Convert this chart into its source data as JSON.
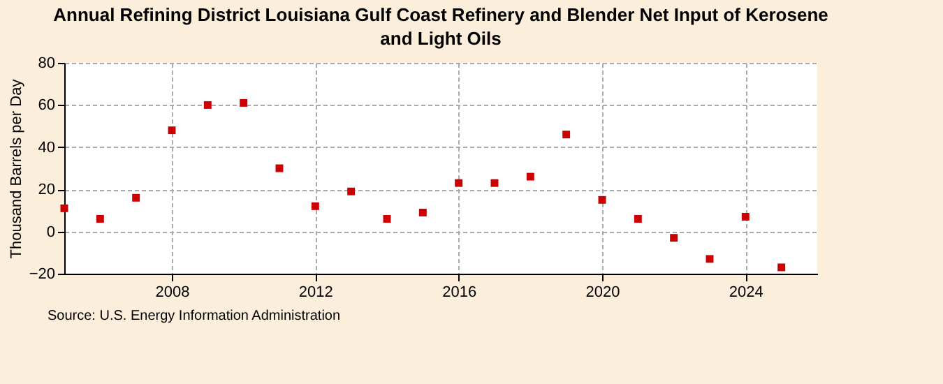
{
  "chart_data": {
    "type": "scatter",
    "title": "Annual Refining District Louisiana Gulf Coast Refinery and Blender Net Input of Kerosene and Light Oils",
    "ylabel": "Thousand Barrels per Day",
    "annotations": [
      "Source: U.S. Energy Information Administration"
    ],
    "x": [
      2005,
      2006,
      2007,
      2008,
      2009,
      2010,
      2011,
      2012,
      2013,
      2014,
      2015,
      2016,
      2017,
      2018,
      2019,
      2020,
      2021,
      2022,
      2023,
      2024,
      2025
    ],
    "series": [
      {
        "color": "#cc0000",
        "values": [
          11,
          6,
          16,
          48,
          60,
          61,
          30,
          12,
          19,
          6,
          9,
          23,
          23,
          26,
          46,
          15,
          6,
          -3,
          -13,
          7,
          -17
        ]
      }
    ],
    "xlim": [
      2005,
      2026
    ],
    "xticks": [
      2008,
      2012,
      2016,
      2020,
      2024
    ],
    "ylim": [
      -20,
      80
    ],
    "yticks": [
      -20,
      0,
      20,
      40,
      60,
      80
    ],
    "grid": true,
    "marker": "square"
  }
}
